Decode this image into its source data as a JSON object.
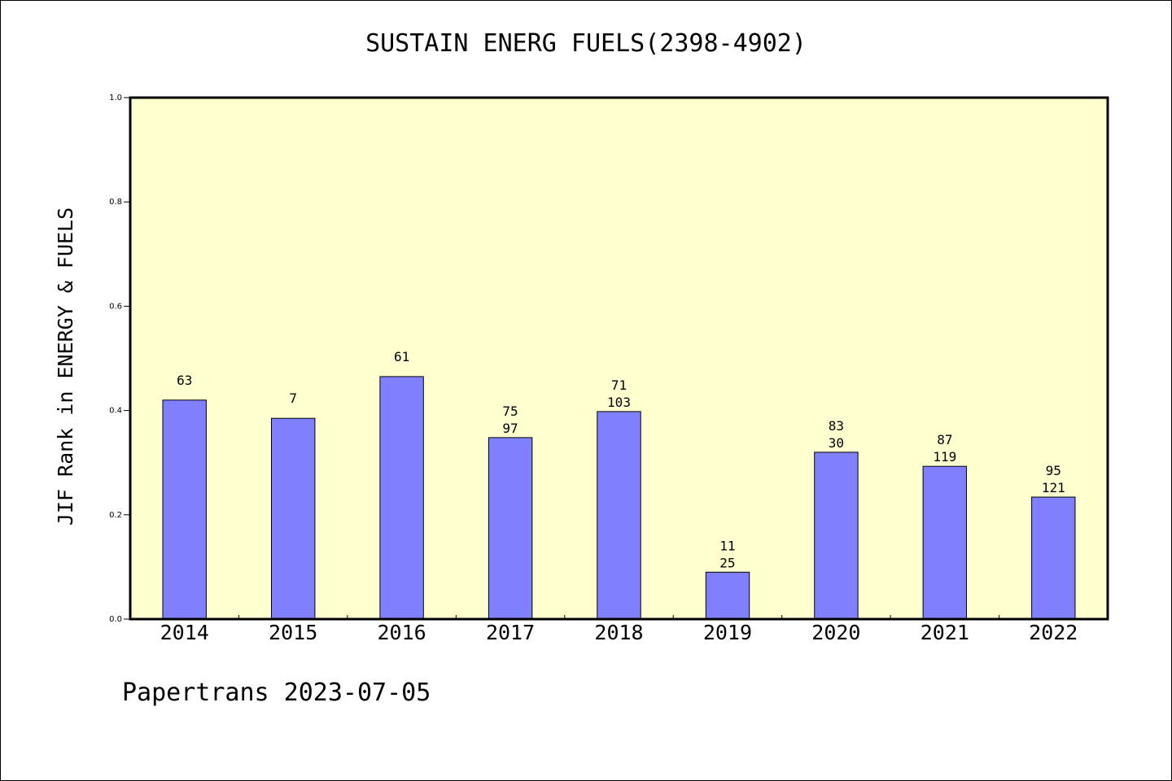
{
  "chart_data": {
    "type": "bar",
    "title": "SUSTAIN ENERG FUELS(2398-4902)",
    "ylabel": "JIF Rank in ENERGY & FUELS",
    "xlabel": "",
    "ylim": [
      0,
      1.0
    ],
    "yticks": [
      "0.0",
      "0.2",
      "0.4",
      "0.6",
      "0.8",
      "1.0"
    ],
    "categories": [
      "2014",
      "2015",
      "2016",
      "2017",
      "2018",
      "2019",
      "2020",
      "2021",
      "2022"
    ],
    "values": [
      0.42,
      0.385,
      0.465,
      0.348,
      0.398,
      0.09,
      0.32,
      0.293,
      0.234
    ],
    "rank_labels": [
      "63",
      "7",
      "61",
      "75",
      "71",
      "11",
      "83",
      "87",
      "95"
    ],
    "total_labels": [
      "",
      "",
      "",
      "97",
      "103",
      "25",
      "30",
      "119",
      "121"
    ],
    "grid": false,
    "colors": {
      "bar": "#8080ff",
      "plot_bg": "#ffffd0",
      "axis": "#000000"
    }
  },
  "footer": {
    "text": "Papertrans 2023-07-05"
  }
}
